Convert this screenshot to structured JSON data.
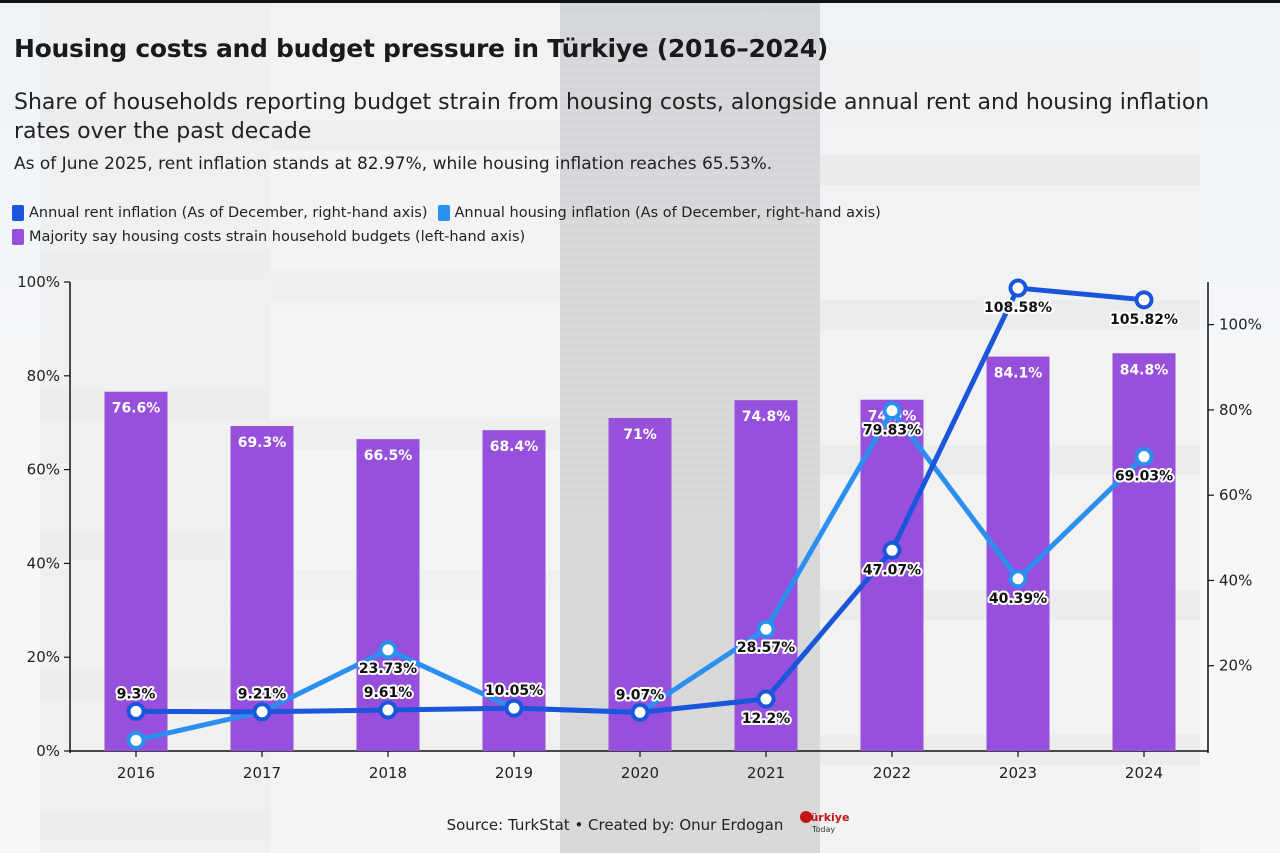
{
  "title": "Housing costs and budget pressure in Türkiye (2016–2024)",
  "subtitle": "Share of households reporting budget strain from housing costs, alongside annual rent and housing inflation rates over the past decade",
  "note": "As of June 2025, rent inflation stands at 82.97%, while housing inflation reaches 65.53%.",
  "legend": [
    {
      "label": "Annual rent inflation (As of December, right-hand axis)",
      "color": "#1a56db"
    },
    {
      "label": "Annual housing inflation (As of December, right-hand axis)",
      "color": "#2b8ff0"
    },
    {
      "label": "Majority say housing costs strain household budgets (left-hand axis)",
      "color": "#9650dc"
    }
  ],
  "source": "Source: TurkStat • Created by: Onur Erdogan",
  "logo": {
    "line1": "Türkiye",
    "line2": "Today",
    "color": "#c0161b"
  },
  "colors": {
    "bar": "#9650dc",
    "rent": "#1a56db",
    "housing": "#2b8ff0",
    "axis": "#111111"
  },
  "chart_data": {
    "type": "bar",
    "categories": [
      "2016",
      "2017",
      "2018",
      "2019",
      "2020",
      "2021",
      "2022",
      "2023",
      "2024"
    ],
    "left_axis": {
      "ylim": [
        0,
        100
      ],
      "ticks": [
        0,
        20,
        40,
        60,
        80,
        100
      ],
      "tick_labels": [
        "0%",
        "20%",
        "40%",
        "60%",
        "80%",
        "100%"
      ]
    },
    "right_axis": {
      "ylim": [
        0,
        110
      ],
      "ticks": [
        20,
        40,
        60,
        80,
        100
      ],
      "tick_labels": [
        "20%",
        "40%",
        "60%",
        "80%",
        "100%"
      ]
    },
    "series": [
      {
        "name": "Majority say housing costs strain household budgets (left-hand axis)",
        "type": "bar",
        "axis": "left",
        "values": [
          76.6,
          69.3,
          66.5,
          68.4,
          71,
          74.8,
          74.9,
          84.1,
          84.8
        ],
        "labels": [
          "76.6%",
          "69.3%",
          "66.5%",
          "68.4%",
          "71%",
          "74.8%",
          "74.9%",
          "84.1%",
          "84.8%"
        ]
      },
      {
        "name": "Annual rent inflation (As of December, right-hand axis)",
        "type": "line",
        "axis": "right",
        "values": [
          9.3,
          9.21,
          9.61,
          10.05,
          9.07,
          12.2,
          47.07,
          108.58,
          105.82
        ],
        "labels": [
          "9.3%",
          "9.21%",
          "9.61%",
          "10.05%",
          "9.07%",
          "12.2%",
          "47.07%",
          "108.58%",
          "105.82%"
        ]
      },
      {
        "name": "Annual housing inflation (As of December, right-hand axis)",
        "type": "line",
        "axis": "right",
        "values": [
          2.5,
          9.21,
          23.73,
          10.05,
          9.07,
          28.57,
          79.83,
          40.39,
          69.03
        ],
        "labels": [
          "",
          "",
          "23.73%",
          "",
          "",
          "28.57%",
          "79.83%",
          "40.39%",
          "69.03%"
        ]
      }
    ]
  }
}
